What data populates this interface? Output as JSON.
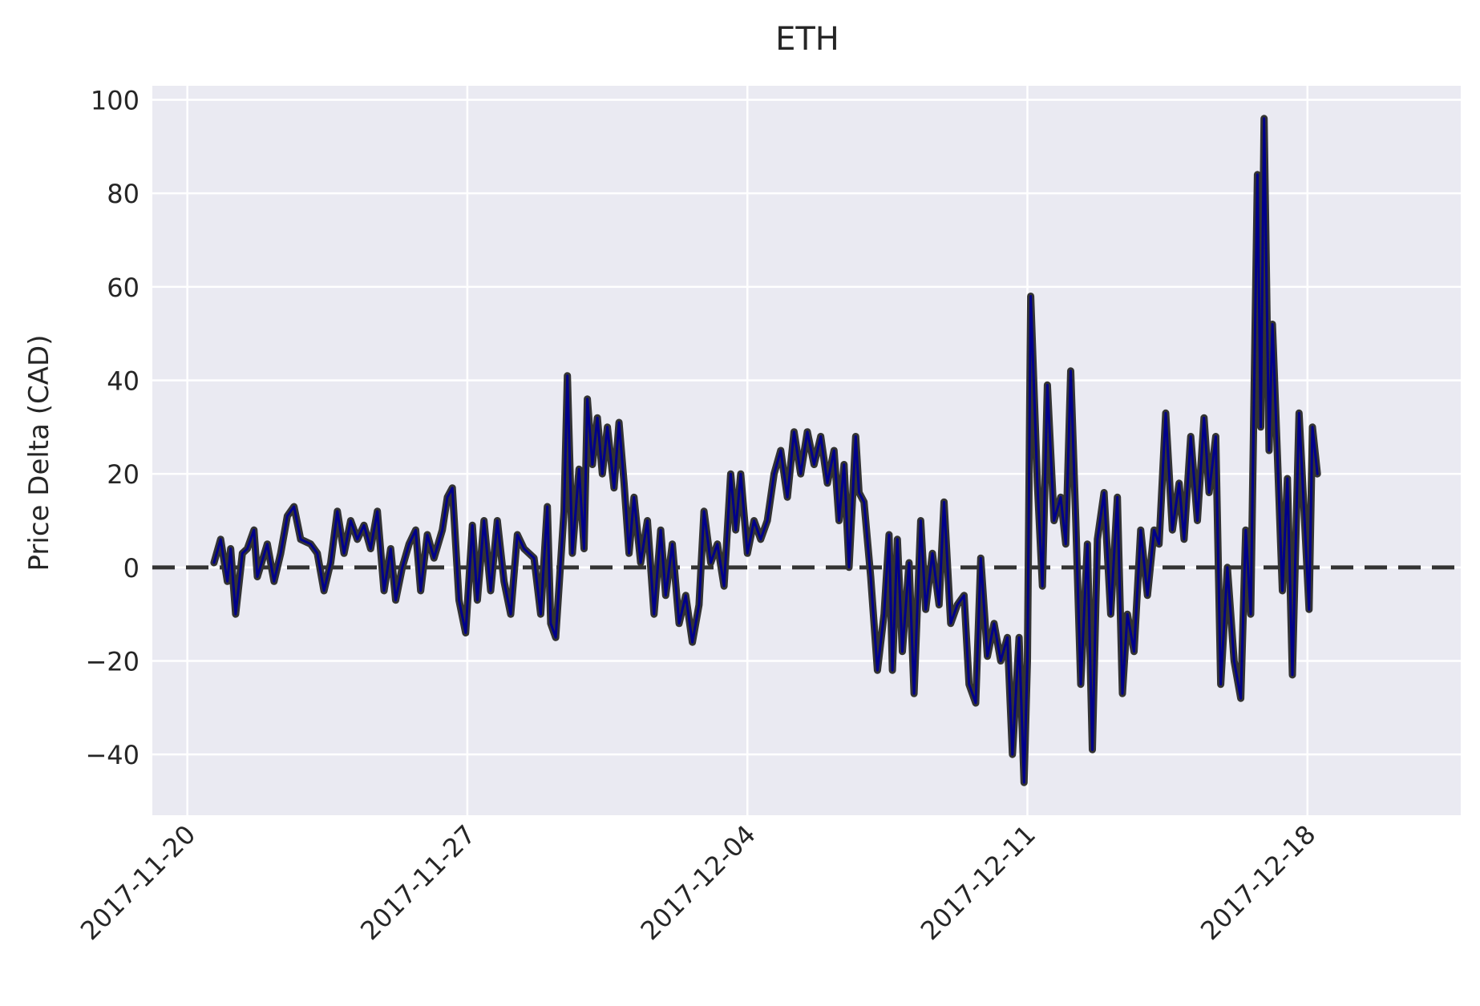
{
  "chart_data": {
    "type": "line",
    "title": "ETH",
    "xlabel": "",
    "ylabel": "Price Delta (CAD)",
    "x_range": [
      "2017-11-19 03:00",
      "2017-12-21 20:00"
    ],
    "ylim": [
      -53,
      103
    ],
    "x_ticks": [
      "2017-11-20",
      "2017-11-27",
      "2017-12-04",
      "2017-12-11",
      "2017-12-18"
    ],
    "y_ticks": [
      100,
      80,
      60,
      40,
      20,
      0,
      -20,
      -40
    ],
    "y_tick_labels": [
      "100",
      "80",
      "60",
      "40",
      "20",
      "0",
      "−20",
      "−40"
    ],
    "grid": true,
    "reference_line": {
      "y": 0,
      "style": "dashed"
    },
    "colors": {
      "background": "#eaeaf2",
      "grid": "#ffffff",
      "line_outline": "#333333",
      "line_inner": "#00008b",
      "ref_line": "#333333"
    },
    "series": [
      {
        "points": [
          [
            "2017-11-20 16:00",
            1
          ],
          [
            "2017-11-20 20:00",
            6
          ],
          [
            "2017-11-21 00:00",
            -3
          ],
          [
            "2017-11-21 02:00",
            4
          ],
          [
            "2017-11-21 05:00",
            -10
          ],
          [
            "2017-11-21 09:00",
            3
          ],
          [
            "2017-11-21 12:00",
            4
          ],
          [
            "2017-11-21 16:00",
            8
          ],
          [
            "2017-11-21 18:00",
            -2
          ],
          [
            "2017-11-22 00:00",
            5
          ],
          [
            "2017-11-22 04:00",
            -3
          ],
          [
            "2017-11-22 08:00",
            3
          ],
          [
            "2017-11-22 12:00",
            11
          ],
          [
            "2017-11-22 16:00",
            13
          ],
          [
            "2017-11-22 20:00",
            6
          ],
          [
            "2017-11-23 02:00",
            5
          ],
          [
            "2017-11-23 06:00",
            3
          ],
          [
            "2017-11-23 10:00",
            -5
          ],
          [
            "2017-11-23 14:00",
            1
          ],
          [
            "2017-11-23 18:00",
            12
          ],
          [
            "2017-11-23 22:00",
            3
          ],
          [
            "2017-11-24 02:00",
            10
          ],
          [
            "2017-11-24 06:00",
            6
          ],
          [
            "2017-11-24 10:00",
            9
          ],
          [
            "2017-11-24 14:00",
            4
          ],
          [
            "2017-11-24 18:00",
            12
          ],
          [
            "2017-11-24 22:00",
            -5
          ],
          [
            "2017-11-25 02:00",
            4
          ],
          [
            "2017-11-25 05:00",
            -7
          ],
          [
            "2017-11-25 09:00",
            0
          ],
          [
            "2017-11-25 13:00",
            5
          ],
          [
            "2017-11-25 17:00",
            8
          ],
          [
            "2017-11-25 20:00",
            -5
          ],
          [
            "2017-11-26 00:00",
            7
          ],
          [
            "2017-11-26 04:00",
            2
          ],
          [
            "2017-11-26 09:00",
            8
          ],
          [
            "2017-11-26 12:00",
            15
          ],
          [
            "2017-11-26 15:00",
            17
          ],
          [
            "2017-11-26 19:00",
            -7
          ],
          [
            "2017-11-26 23:00",
            -14
          ],
          [
            "2017-11-27 03:00",
            9
          ],
          [
            "2017-11-27 06:00",
            -7
          ],
          [
            "2017-11-27 10:00",
            10
          ],
          [
            "2017-11-27 14:00",
            -5
          ],
          [
            "2017-11-27 18:00",
            10
          ],
          [
            "2017-11-27 22:00",
            -3
          ],
          [
            "2017-11-28 02:00",
            -10
          ],
          [
            "2017-11-28 06:00",
            7
          ],
          [
            "2017-11-28 10:00",
            4
          ],
          [
            "2017-11-28 16:00",
            2
          ],
          [
            "2017-11-28 20:00",
            -10
          ],
          [
            "2017-11-29 00:00",
            13
          ],
          [
            "2017-11-29 02:00",
            -12
          ],
          [
            "2017-11-29 05:00",
            -15
          ],
          [
            "2017-11-29 10:00",
            12
          ],
          [
            "2017-11-29 12:00",
            41
          ],
          [
            "2017-11-29 15:00",
            3
          ],
          [
            "2017-11-29 19:00",
            21
          ],
          [
            "2017-11-29 22:00",
            4
          ],
          [
            "2017-11-30 00:00",
            36
          ],
          [
            "2017-11-30 03:00",
            22
          ],
          [
            "2017-11-30 06:00",
            32
          ],
          [
            "2017-11-30 09:00",
            20
          ],
          [
            "2017-11-30 12:00",
            30
          ],
          [
            "2017-11-30 16:00",
            17
          ],
          [
            "2017-11-30 19:00",
            31
          ],
          [
            "2017-11-30 22:00",
            18
          ],
          [
            "2017-12-01 01:00",
            3
          ],
          [
            "2017-12-01 04:00",
            15
          ],
          [
            "2017-12-01 08:00",
            1
          ],
          [
            "2017-12-01 12:00",
            10
          ],
          [
            "2017-12-01 16:00",
            -10
          ],
          [
            "2017-12-01 20:00",
            8
          ],
          [
            "2017-12-01 23:00",
            -6
          ],
          [
            "2017-12-02 03:00",
            5
          ],
          [
            "2017-12-02 07:00",
            -12
          ],
          [
            "2017-12-02 11:00",
            -6
          ],
          [
            "2017-12-02 15:00",
            -16
          ],
          [
            "2017-12-02 19:00",
            -8
          ],
          [
            "2017-12-02 22:00",
            12
          ],
          [
            "2017-12-03 02:00",
            1
          ],
          [
            "2017-12-03 06:00",
            5
          ],
          [
            "2017-12-03 10:00",
            -4
          ],
          [
            "2017-12-03 14:00",
            20
          ],
          [
            "2017-12-03 17:00",
            8
          ],
          [
            "2017-12-03 20:00",
            20
          ],
          [
            "2017-12-04 00:00",
            3
          ],
          [
            "2017-12-04 04:00",
            10
          ],
          [
            "2017-12-04 08:00",
            6
          ],
          [
            "2017-12-04 12:00",
            10
          ],
          [
            "2017-12-04 16:00",
            20
          ],
          [
            "2017-12-04 20:00",
            25
          ],
          [
            "2017-12-05 00:00",
            15
          ],
          [
            "2017-12-05 04:00",
            29
          ],
          [
            "2017-12-05 08:00",
            20
          ],
          [
            "2017-12-05 12:00",
            29
          ],
          [
            "2017-12-05 16:00",
            22
          ],
          [
            "2017-12-05 20:00",
            28
          ],
          [
            "2017-12-06 00:00",
            18
          ],
          [
            "2017-12-06 04:00",
            25
          ],
          [
            "2017-12-06 07:00",
            10
          ],
          [
            "2017-12-06 10:00",
            22
          ],
          [
            "2017-12-06 13:00",
            0
          ],
          [
            "2017-12-06 17:00",
            28
          ],
          [
            "2017-12-06 19:00",
            16
          ],
          [
            "2017-12-06 22:00",
            14
          ],
          [
            "2017-12-07 02:00",
            -2
          ],
          [
            "2017-12-07 06:00",
            -22
          ],
          [
            "2017-12-07 10:00",
            -10
          ],
          [
            "2017-12-07 13:00",
            7
          ],
          [
            "2017-12-07 15:00",
            -22
          ],
          [
            "2017-12-07 18:00",
            6
          ],
          [
            "2017-12-07 21:00",
            -18
          ],
          [
            "2017-12-08 01:00",
            1
          ],
          [
            "2017-12-08 04:00",
            -27
          ],
          [
            "2017-12-08 08:00",
            10
          ],
          [
            "2017-12-08 11:00",
            -9
          ],
          [
            "2017-12-08 15:00",
            3
          ],
          [
            "2017-12-08 19:00",
            -8
          ],
          [
            "2017-12-08 22:00",
            14
          ],
          [
            "2017-12-09 02:00",
            -12
          ],
          [
            "2017-12-09 06:00",
            -8
          ],
          [
            "2017-12-09 10:00",
            -6
          ],
          [
            "2017-12-09 13:00",
            -25
          ],
          [
            "2017-12-09 17:00",
            -29
          ],
          [
            "2017-12-09 20:00",
            2
          ],
          [
            "2017-12-10 00:00",
            -19
          ],
          [
            "2017-12-10 04:00",
            -12
          ],
          [
            "2017-12-10 08:00",
            -20
          ],
          [
            "2017-12-10 12:00",
            -15
          ],
          [
            "2017-12-10 15:00",
            -40
          ],
          [
            "2017-12-10 19:00",
            -15
          ],
          [
            "2017-12-10 22:00",
            -46
          ],
          [
            "2017-12-11 00:00",
            -20
          ],
          [
            "2017-12-11 02:00",
            58
          ],
          [
            "2017-12-11 06:00",
            18
          ],
          [
            "2017-12-11 09:00",
            -4
          ],
          [
            "2017-12-11 12:00",
            39
          ],
          [
            "2017-12-11 16:00",
            10
          ],
          [
            "2017-12-11 20:00",
            15
          ],
          [
            "2017-12-11 23:00",
            5
          ],
          [
            "2017-12-12 02:00",
            42
          ],
          [
            "2017-12-12 05:00",
            10
          ],
          [
            "2017-12-12 08:00",
            -25
          ],
          [
            "2017-12-12 12:00",
            5
          ],
          [
            "2017-12-12 15:00",
            -39
          ],
          [
            "2017-12-12 18:00",
            6
          ],
          [
            "2017-12-12 22:00",
            16
          ],
          [
            "2017-12-13 02:00",
            -10
          ],
          [
            "2017-12-13 06:00",
            15
          ],
          [
            "2017-12-13 09:00",
            -27
          ],
          [
            "2017-12-13 12:00",
            -10
          ],
          [
            "2017-12-13 16:00",
            -18
          ],
          [
            "2017-12-13 20:00",
            8
          ],
          [
            "2017-12-14 00:00",
            -6
          ],
          [
            "2017-12-14 04:00",
            8
          ],
          [
            "2017-12-14 07:00",
            5
          ],
          [
            "2017-12-14 11:00",
            33
          ],
          [
            "2017-12-14 15:00",
            8
          ],
          [
            "2017-12-14 19:00",
            18
          ],
          [
            "2017-12-14 22:00",
            6
          ],
          [
            "2017-12-15 02:00",
            28
          ],
          [
            "2017-12-15 06:00",
            10
          ],
          [
            "2017-12-15 10:00",
            32
          ],
          [
            "2017-12-15 13:00",
            16
          ],
          [
            "2017-12-15 17:00",
            28
          ],
          [
            "2017-12-15 20:00",
            -25
          ],
          [
            "2017-12-16 00:00",
            0
          ],
          [
            "2017-12-16 04:00",
            -20
          ],
          [
            "2017-12-16 08:00",
            -28
          ],
          [
            "2017-12-16 11:00",
            8
          ],
          [
            "2017-12-16 14:00",
            -10
          ],
          [
            "2017-12-16 18:00",
            84
          ],
          [
            "2017-12-16 20:00",
            30
          ],
          [
            "2017-12-16 22:00",
            96
          ],
          [
            "2017-12-17 01:00",
            25
          ],
          [
            "2017-12-17 03:00",
            52
          ],
          [
            "2017-12-17 06:00",
            24
          ],
          [
            "2017-12-17 09:00",
            -5
          ],
          [
            "2017-12-17 12:00",
            19
          ],
          [
            "2017-12-17 15:00",
            -23
          ],
          [
            "2017-12-17 19:00",
            33
          ],
          [
            "2017-12-17 22:00",
            12
          ],
          [
            "2017-12-18 01:00",
            -9
          ],
          [
            "2017-12-18 03:00",
            30
          ],
          [
            "2017-12-18 06:00",
            20
          ]
        ]
      }
    ]
  }
}
